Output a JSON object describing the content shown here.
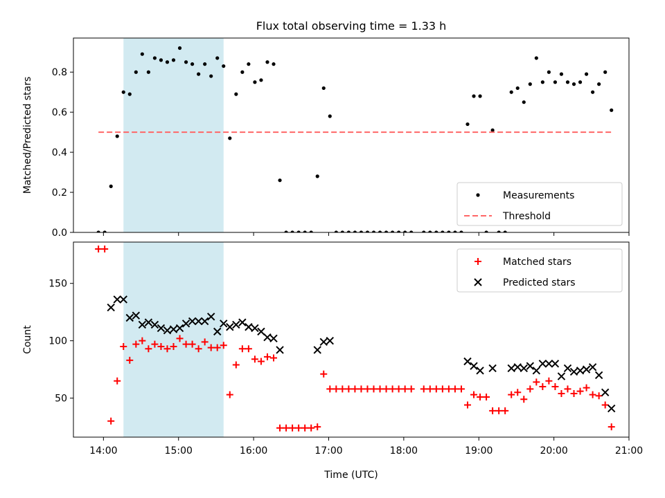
{
  "figure": {
    "title": "Flux total observing time = 1.33 h",
    "colors": {
      "shade": "#add8e6",
      "threshold": "#ff6666",
      "matched": "#ff0000",
      "predicted": "#000000",
      "measurement": "#000000"
    }
  },
  "chart_data": [
    {
      "type": "scatter",
      "panel": "top",
      "title": "Flux total observing time = 1.33 h",
      "ylabel": "Matched/Predicted stars",
      "xlim": [
        "13:36",
        "21:00"
      ],
      "ylim": [
        0,
        0.97
      ],
      "yticks": [
        0,
        0.2,
        0.4,
        0.6,
        0.8
      ],
      "ytick_labels": [
        "0.0",
        "0.2",
        "0.4",
        "0.6",
        "0.8"
      ],
      "legend_position": "lower right",
      "shaded_span": [
        "14:16",
        "15:36"
      ],
      "series": [
        {
          "name": "Measurements",
          "marker": "dot",
          "points": [
            [
              "13:56",
              0
            ],
            [
              "14:01",
              0
            ],
            [
              "14:06",
              0.23
            ],
            [
              "14:11",
              0.48
            ],
            [
              "14:16",
              0.7
            ],
            [
              "14:21",
              0.69
            ],
            [
              "14:26",
              0.8
            ],
            [
              "14:31",
              0.89
            ],
            [
              "14:36",
              0.8
            ],
            [
              "14:41",
              0.87
            ],
            [
              "14:46",
              0.86
            ],
            [
              "14:51",
              0.85
            ],
            [
              "14:56",
              0.86
            ],
            [
              "15:01",
              0.92
            ],
            [
              "15:06",
              0.85
            ],
            [
              "15:11",
              0.84
            ],
            [
              "15:16",
              0.79
            ],
            [
              "15:21",
              0.84
            ],
            [
              "15:26",
              0.78
            ],
            [
              "15:31",
              0.87
            ],
            [
              "15:36",
              0.83
            ],
            [
              "15:41",
              0.47
            ],
            [
              "15:46",
              0.69
            ],
            [
              "15:51",
              0.8
            ],
            [
              "15:56",
              0.84
            ],
            [
              "16:01",
              0.75
            ],
            [
              "16:06",
              0.76
            ],
            [
              "16:11",
              0.85
            ],
            [
              "16:16",
              0.84
            ],
            [
              "16:21",
              0.26
            ],
            [
              "16:26",
              0
            ],
            [
              "16:31",
              0
            ],
            [
              "16:36",
              0
            ],
            [
              "16:41",
              0
            ],
            [
              "16:46",
              0
            ],
            [
              "16:51",
              0.28
            ],
            [
              "16:56",
              0.72
            ],
            [
              "17:01",
              0.58
            ],
            [
              "17:06",
              0
            ],
            [
              "17:11",
              0
            ],
            [
              "17:16",
              0
            ],
            [
              "17:21",
              0
            ],
            [
              "17:26",
              0
            ],
            [
              "17:31",
              0
            ],
            [
              "17:36",
              0
            ],
            [
              "17:41",
              0
            ],
            [
              "17:46",
              0
            ],
            [
              "17:51",
              0
            ],
            [
              "17:56",
              0
            ],
            [
              "18:01",
              0
            ],
            [
              "18:06",
              0
            ],
            [
              "18:16",
              0
            ],
            [
              "18:21",
              0
            ],
            [
              "18:26",
              0
            ],
            [
              "18:31",
              0
            ],
            [
              "18:36",
              0
            ],
            [
              "18:41",
              0
            ],
            [
              "18:46",
              0
            ],
            [
              "18:51",
              0.54
            ],
            [
              "18:56",
              0.68
            ],
            [
              "19:01",
              0.68
            ],
            [
              "19:06",
              0
            ],
            [
              "19:11",
              0.51
            ],
            [
              "19:16",
              0
            ],
            [
              "19:21",
              0
            ],
            [
              "19:26",
              0.7
            ],
            [
              "19:31",
              0.72
            ],
            [
              "19:36",
              0.65
            ],
            [
              "19:41",
              0.74
            ],
            [
              "19:46",
              0.87
            ],
            [
              "19:51",
              0.75
            ],
            [
              "19:56",
              0.8
            ],
            [
              "20:01",
              0.75
            ],
            [
              "20:06",
              0.79
            ],
            [
              "20:11",
              0.75
            ],
            [
              "20:16",
              0.74
            ],
            [
              "20:21",
              0.75
            ],
            [
              "20:26",
              0.79
            ],
            [
              "20:31",
              0.7
            ],
            [
              "20:36",
              0.74
            ],
            [
              "20:41",
              0.8
            ],
            [
              "20:46",
              0.61
            ]
          ]
        },
        {
          "name": "Threshold",
          "marker": "dashed-line",
          "points": [
            [
              "13:56",
              0.5
            ],
            [
              "20:46",
              0.5
            ]
          ]
        }
      ]
    },
    {
      "type": "scatter",
      "panel": "bottom",
      "xlabel": "Time (UTC)",
      "ylabel": "Count",
      "xlim": [
        "13:36",
        "21:00"
      ],
      "ylim": [
        16,
        186
      ],
      "yticks": [
        50,
        100,
        150
      ],
      "ytick_labels": [
        "50",
        "100",
        "150"
      ],
      "xticks": [
        "14:00",
        "15:00",
        "16:00",
        "17:00",
        "18:00",
        "19:00",
        "20:00",
        "21:00"
      ],
      "xtick_labels": [
        "14:00",
        "15:00",
        "16:00",
        "17:00",
        "18:00",
        "19:00",
        "20:00",
        "21:00"
      ],
      "legend_position": "upper right",
      "shaded_span": [
        "14:16",
        "15:36"
      ],
      "series": [
        {
          "name": "Matched stars",
          "marker": "plus",
          "points": [
            [
              "13:56",
              180
            ],
            [
              "14:01",
              180
            ],
            [
              "14:06",
              30
            ],
            [
              "14:11",
              65
            ],
            [
              "14:16",
              95
            ],
            [
              "14:21",
              83
            ],
            [
              "14:26",
              97
            ],
            [
              "14:31",
              100
            ],
            [
              "14:36",
              93
            ],
            [
              "14:41",
              97
            ],
            [
              "14:46",
              95
            ],
            [
              "14:51",
              93
            ],
            [
              "14:56",
              95
            ],
            [
              "15:01",
              102
            ],
            [
              "15:06",
              97
            ],
            [
              "15:11",
              97
            ],
            [
              "15:16",
              93
            ],
            [
              "15:21",
              99
            ],
            [
              "15:26",
              94
            ],
            [
              "15:31",
              94
            ],
            [
              "15:36",
              96
            ],
            [
              "15:41",
              53
            ],
            [
              "15:46",
              79
            ],
            [
              "15:51",
              93
            ],
            [
              "15:56",
              93
            ],
            [
              "16:01",
              84
            ],
            [
              "16:06",
              82
            ],
            [
              "16:11",
              86
            ],
            [
              "16:16",
              85
            ],
            [
              "16:21",
              24
            ],
            [
              "16:26",
              24
            ],
            [
              "16:31",
              24
            ],
            [
              "16:36",
              24
            ],
            [
              "16:41",
              24
            ],
            [
              "16:46",
              24
            ],
            [
              "16:51",
              25
            ],
            [
              "16:56",
              71
            ],
            [
              "17:01",
              58
            ],
            [
              "17:06",
              58
            ],
            [
              "17:11",
              58
            ],
            [
              "17:16",
              58
            ],
            [
              "17:21",
              58
            ],
            [
              "17:26",
              58
            ],
            [
              "17:31",
              58
            ],
            [
              "17:36",
              58
            ],
            [
              "17:41",
              58
            ],
            [
              "17:46",
              58
            ],
            [
              "17:51",
              58
            ],
            [
              "17:56",
              58
            ],
            [
              "18:01",
              58
            ],
            [
              "18:06",
              58
            ],
            [
              "18:16",
              58
            ],
            [
              "18:21",
              58
            ],
            [
              "18:26",
              58
            ],
            [
              "18:31",
              58
            ],
            [
              "18:36",
              58
            ],
            [
              "18:41",
              58
            ],
            [
              "18:46",
              58
            ],
            [
              "18:51",
              44
            ],
            [
              "18:56",
              53
            ],
            [
              "19:01",
              51
            ],
            [
              "19:06",
              51
            ],
            [
              "19:11",
              39
            ],
            [
              "19:16",
              39
            ],
            [
              "19:21",
              39
            ],
            [
              "19:26",
              53
            ],
            [
              "19:31",
              55
            ],
            [
              "19:36",
              49
            ],
            [
              "19:41",
              58
            ],
            [
              "19:46",
              64
            ],
            [
              "19:51",
              60
            ],
            [
              "19:56",
              65
            ],
            [
              "20:01",
              60
            ],
            [
              "20:06",
              54
            ],
            [
              "20:11",
              58
            ],
            [
              "20:16",
              54
            ],
            [
              "20:21",
              56
            ],
            [
              "20:26",
              59
            ],
            [
              "20:31",
              53
            ],
            [
              "20:36",
              52
            ],
            [
              "20:41",
              44
            ],
            [
              "20:46",
              25
            ]
          ]
        },
        {
          "name": "Predicted stars",
          "marker": "x",
          "points": [
            [
              "14:06",
              129
            ],
            [
              "14:11",
              136
            ],
            [
              "14:16",
              136
            ],
            [
              "14:21",
              120
            ],
            [
              "14:26",
              122
            ],
            [
              "14:31",
              114
            ],
            [
              "14:36",
              116
            ],
            [
              "14:41",
              114
            ],
            [
              "14:46",
              111
            ],
            [
              "14:51",
              109
            ],
            [
              "14:56",
              110
            ],
            [
              "15:01",
              111
            ],
            [
              "15:06",
              115
            ],
            [
              "15:11",
              117
            ],
            [
              "15:16",
              117
            ],
            [
              "15:21",
              117
            ],
            [
              "15:26",
              121
            ],
            [
              "15:31",
              108
            ],
            [
              "15:36",
              115
            ],
            [
              "15:41",
              112
            ],
            [
              "15:46",
              114
            ],
            [
              "15:51",
              116
            ],
            [
              "15:56",
              112
            ],
            [
              "16:01",
              111
            ],
            [
              "16:06",
              108
            ],
            [
              "16:11",
              103
            ],
            [
              "16:16",
              102
            ],
            [
              "16:21",
              92
            ],
            [
              "16:51",
              92
            ],
            [
              "16:56",
              99
            ],
            [
              "17:01",
              100
            ],
            [
              "18:51",
              82
            ],
            [
              "18:56",
              78
            ],
            [
              "19:01",
              74
            ],
            [
              "19:11",
              76
            ],
            [
              "19:26",
              76
            ],
            [
              "19:31",
              77
            ],
            [
              "19:36",
              76
            ],
            [
              "19:41",
              78
            ],
            [
              "19:46",
              74
            ],
            [
              "19:51",
              80
            ],
            [
              "19:56",
              80
            ],
            [
              "20:01",
              80
            ],
            [
              "20:06",
              69
            ],
            [
              "20:11",
              76
            ],
            [
              "20:16",
              73
            ],
            [
              "20:21",
              74
            ],
            [
              "20:26",
              75
            ],
            [
              "20:31",
              77
            ],
            [
              "20:36",
              70
            ],
            [
              "20:41",
              55
            ],
            [
              "20:46",
              41
            ]
          ]
        }
      ]
    }
  ]
}
